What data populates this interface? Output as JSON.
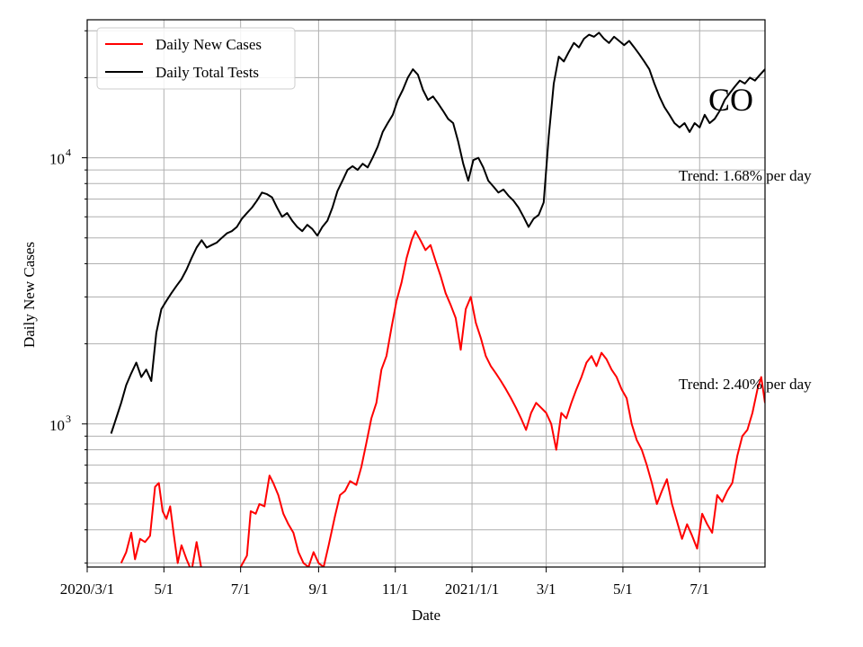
{
  "chart_data": {
    "type": "line",
    "title": "",
    "state_label": "CO",
    "xlabel": "Date",
    "ylabel": "Daily New Cases",
    "y_scale": "log",
    "ylim": [
      290,
      33000
    ],
    "xlim": [
      "2020-03-01",
      "2021-08-22"
    ],
    "grid": true,
    "legend_position": "top-left",
    "x_ticks": [
      {
        "date": "2020-03-01",
        "label": "2020/3/1"
      },
      {
        "date": "2020-05-01",
        "label": "5/1"
      },
      {
        "date": "2020-07-01",
        "label": "7/1"
      },
      {
        "date": "2020-09-01",
        "label": "9/1"
      },
      {
        "date": "2020-11-01",
        "label": "11/1"
      },
      {
        "date": "2021-01-01",
        "label": "2021/1/1"
      },
      {
        "date": "2021-03-01",
        "label": "3/1"
      },
      {
        "date": "2021-05-01",
        "label": "5/1"
      },
      {
        "date": "2021-07-01",
        "label": "7/1"
      }
    ],
    "y_major_ticks": [
      {
        "value": 1000,
        "label_base": "10",
        "label_exp": "3"
      },
      {
        "value": 10000,
        "label_base": "10",
        "label_exp": "4"
      }
    ],
    "annotations": [
      {
        "text": "Trend: 1.68% per day",
        "series": "Daily Total Tests"
      },
      {
        "text": "Trend: 2.40% per day",
        "series": "Daily New Cases"
      }
    ],
    "series": [
      {
        "name": "Daily New Cases",
        "color": "#ff0000",
        "points": [
          [
            "2020-03-28",
            300
          ],
          [
            "2020-04-01",
            330
          ],
          [
            "2020-04-05",
            390
          ],
          [
            "2020-04-08",
            310
          ],
          [
            "2020-04-12",
            370
          ],
          [
            "2020-04-16",
            360
          ],
          [
            "2020-04-20",
            380
          ],
          [
            "2020-04-24",
            580
          ],
          [
            "2020-04-27",
            600
          ],
          [
            "2020-04-30",
            470
          ],
          [
            "2020-05-03",
            440
          ],
          [
            "2020-05-06",
            490
          ],
          [
            "2020-05-09",
            380
          ],
          [
            "2020-05-12",
            300
          ],
          [
            "2020-05-15",
            350
          ],
          [
            "2020-05-19",
            310
          ],
          [
            "2020-05-23",
            280
          ],
          [
            "2020-05-27",
            360
          ],
          [
            "2020-05-30",
            300
          ],
          [
            "2020-06-02",
            250
          ],
          [
            "2020-06-27",
            250
          ],
          [
            "2020-07-01",
            290
          ],
          [
            "2020-07-06",
            320
          ],
          [
            "2020-07-09",
            470
          ],
          [
            "2020-07-13",
            460
          ],
          [
            "2020-07-16",
            500
          ],
          [
            "2020-07-20",
            490
          ],
          [
            "2020-07-24",
            640
          ],
          [
            "2020-07-27",
            600
          ],
          [
            "2020-07-31",
            540
          ],
          [
            "2020-08-04",
            460
          ],
          [
            "2020-08-08",
            420
          ],
          [
            "2020-08-12",
            390
          ],
          [
            "2020-08-16",
            330
          ],
          [
            "2020-08-20",
            300
          ],
          [
            "2020-08-24",
            290
          ],
          [
            "2020-08-28",
            330
          ],
          [
            "2020-09-01",
            300
          ],
          [
            "2020-09-05",
            290
          ],
          [
            "2020-09-09",
            350
          ],
          [
            "2020-09-14",
            450
          ],
          [
            "2020-09-18",
            540
          ],
          [
            "2020-09-22",
            560
          ],
          [
            "2020-09-26",
            610
          ],
          [
            "2020-10-01",
            590
          ],
          [
            "2020-10-05",
            690
          ],
          [
            "2020-10-09",
            850
          ],
          [
            "2020-10-13",
            1050
          ],
          [
            "2020-10-17",
            1200
          ],
          [
            "2020-10-21",
            1600
          ],
          [
            "2020-10-25",
            1800
          ],
          [
            "2020-10-29",
            2300
          ],
          [
            "2020-11-02",
            2900
          ],
          [
            "2020-11-06",
            3400
          ],
          [
            "2020-11-10",
            4200
          ],
          [
            "2020-11-14",
            4900
          ],
          [
            "2020-11-17",
            5300
          ],
          [
            "2020-11-21",
            4900
          ],
          [
            "2020-11-25",
            4500
          ],
          [
            "2020-11-29",
            4700
          ],
          [
            "2020-12-03",
            4100
          ],
          [
            "2020-12-07",
            3600
          ],
          [
            "2020-12-11",
            3100
          ],
          [
            "2020-12-15",
            2800
          ],
          [
            "2020-12-19",
            2500
          ],
          [
            "2020-12-23",
            1900
          ],
          [
            "2020-12-27",
            2700
          ],
          [
            "2020-12-31",
            3000
          ],
          [
            "2021-01-04",
            2400
          ],
          [
            "2021-01-08",
            2100
          ],
          [
            "2021-01-12",
            1800
          ],
          [
            "2021-01-16",
            1650
          ],
          [
            "2021-01-20",
            1550
          ],
          [
            "2021-01-24",
            1450
          ],
          [
            "2021-01-28",
            1350
          ],
          [
            "2021-02-01",
            1250
          ],
          [
            "2021-02-05",
            1150
          ],
          [
            "2021-02-09",
            1050
          ],
          [
            "2021-02-13",
            950
          ],
          [
            "2021-02-17",
            1100
          ],
          [
            "2021-02-21",
            1200
          ],
          [
            "2021-02-25",
            1150
          ],
          [
            "2021-03-01",
            1100
          ],
          [
            "2021-03-05",
            1000
          ],
          [
            "2021-03-09",
            800
          ],
          [
            "2021-03-13",
            1100
          ],
          [
            "2021-03-17",
            1050
          ],
          [
            "2021-03-21",
            1200
          ],
          [
            "2021-03-25",
            1350
          ],
          [
            "2021-03-29",
            1500
          ],
          [
            "2021-04-02",
            1700
          ],
          [
            "2021-04-06",
            1800
          ],
          [
            "2021-04-10",
            1650
          ],
          [
            "2021-04-14",
            1850
          ],
          [
            "2021-04-18",
            1750
          ],
          [
            "2021-04-22",
            1600
          ],
          [
            "2021-04-26",
            1500
          ],
          [
            "2021-04-30",
            1350
          ],
          [
            "2021-05-04",
            1250
          ],
          [
            "2021-05-08",
            1000
          ],
          [
            "2021-05-12",
            870
          ],
          [
            "2021-05-16",
            800
          ],
          [
            "2021-05-20",
            700
          ],
          [
            "2021-05-24",
            600
          ],
          [
            "2021-05-28",
            500
          ],
          [
            "2021-06-01",
            560
          ],
          [
            "2021-06-05",
            620
          ],
          [
            "2021-06-09",
            500
          ],
          [
            "2021-06-13",
            430
          ],
          [
            "2021-06-17",
            370
          ],
          [
            "2021-06-21",
            420
          ],
          [
            "2021-06-25",
            380
          ],
          [
            "2021-06-29",
            340
          ],
          [
            "2021-07-03",
            460
          ],
          [
            "2021-07-07",
            420
          ],
          [
            "2021-07-11",
            390
          ],
          [
            "2021-07-15",
            540
          ],
          [
            "2021-07-19",
            510
          ],
          [
            "2021-07-23",
            560
          ],
          [
            "2021-07-27",
            600
          ],
          [
            "2021-07-31",
            760
          ],
          [
            "2021-08-04",
            900
          ],
          [
            "2021-08-08",
            950
          ],
          [
            "2021-08-12",
            1100
          ],
          [
            "2021-08-16",
            1350
          ],
          [
            "2021-08-19",
            1500
          ],
          [
            "2021-08-22",
            1200
          ]
        ]
      },
      {
        "name": "Daily Total Tests",
        "color": "#000000",
        "points": [
          [
            "2020-03-20",
            920
          ],
          [
            "2020-03-24",
            1050
          ],
          [
            "2020-03-28",
            1200
          ],
          [
            "2020-04-01",
            1400
          ],
          [
            "2020-04-05",
            1550
          ],
          [
            "2020-04-09",
            1700
          ],
          [
            "2020-04-13",
            1500
          ],
          [
            "2020-04-17",
            1600
          ],
          [
            "2020-04-21",
            1450
          ],
          [
            "2020-04-25",
            2200
          ],
          [
            "2020-04-29",
            2700
          ],
          [
            "2020-05-03",
            2900
          ],
          [
            "2020-05-07",
            3100
          ],
          [
            "2020-05-11",
            3300
          ],
          [
            "2020-05-15",
            3500
          ],
          [
            "2020-05-19",
            3800
          ],
          [
            "2020-05-23",
            4200
          ],
          [
            "2020-05-27",
            4600
          ],
          [
            "2020-05-31",
            4900
          ],
          [
            "2020-06-04",
            4600
          ],
          [
            "2020-06-08",
            4700
          ],
          [
            "2020-06-12",
            4800
          ],
          [
            "2020-06-16",
            5000
          ],
          [
            "2020-06-20",
            5200
          ],
          [
            "2020-06-24",
            5300
          ],
          [
            "2020-06-28",
            5500
          ],
          [
            "2020-07-02",
            5900
          ],
          [
            "2020-07-06",
            6200
          ],
          [
            "2020-07-10",
            6500
          ],
          [
            "2020-07-14",
            6900
          ],
          [
            "2020-07-18",
            7400
          ],
          [
            "2020-07-22",
            7300
          ],
          [
            "2020-07-26",
            7100
          ],
          [
            "2020-07-30",
            6500
          ],
          [
            "2020-08-03",
            6000
          ],
          [
            "2020-08-07",
            6200
          ],
          [
            "2020-08-11",
            5800
          ],
          [
            "2020-08-15",
            5500
          ],
          [
            "2020-08-19",
            5300
          ],
          [
            "2020-08-23",
            5600
          ],
          [
            "2020-08-27",
            5400
          ],
          [
            "2020-08-31",
            5100
          ],
          [
            "2020-09-04",
            5500
          ],
          [
            "2020-09-08",
            5800
          ],
          [
            "2020-09-12",
            6500
          ],
          [
            "2020-09-16",
            7500
          ],
          [
            "2020-09-20",
            8200
          ],
          [
            "2020-09-24",
            9000
          ],
          [
            "2020-09-28",
            9300
          ],
          [
            "2020-10-02",
            9000
          ],
          [
            "2020-10-06",
            9500
          ],
          [
            "2020-10-10",
            9200
          ],
          [
            "2020-10-14",
            10000
          ],
          [
            "2020-10-18",
            11000
          ],
          [
            "2020-10-22",
            12500
          ],
          [
            "2020-10-26",
            13500
          ],
          [
            "2020-10-30",
            14500
          ],
          [
            "2020-11-03",
            16500
          ],
          [
            "2020-11-07",
            18000
          ],
          [
            "2020-11-11",
            20000
          ],
          [
            "2020-11-15",
            21500
          ],
          [
            "2020-11-19",
            20500
          ],
          [
            "2020-11-23",
            18000
          ],
          [
            "2020-11-27",
            16500
          ],
          [
            "2020-12-01",
            17000
          ],
          [
            "2020-12-05",
            16000
          ],
          [
            "2020-12-09",
            15000
          ],
          [
            "2020-12-13",
            14000
          ],
          [
            "2020-12-17",
            13500
          ],
          [
            "2020-12-21",
            11500
          ],
          [
            "2020-12-25",
            9500
          ],
          [
            "2020-12-29",
            8200
          ],
          [
            "2021-01-02",
            9800
          ],
          [
            "2021-01-06",
            10000
          ],
          [
            "2021-01-10",
            9200
          ],
          [
            "2021-01-14",
            8200
          ],
          [
            "2021-01-18",
            7800
          ],
          [
            "2021-01-22",
            7400
          ],
          [
            "2021-01-26",
            7600
          ],
          [
            "2021-01-30",
            7200
          ],
          [
            "2021-02-03",
            6900
          ],
          [
            "2021-02-07",
            6500
          ],
          [
            "2021-02-11",
            6000
          ],
          [
            "2021-02-15",
            5500
          ],
          [
            "2021-02-19",
            5900
          ],
          [
            "2021-02-23",
            6100
          ],
          [
            "2021-02-27",
            6800
          ],
          [
            "2021-03-03",
            12000
          ],
          [
            "2021-03-07",
            19000
          ],
          [
            "2021-03-11",
            24000
          ],
          [
            "2021-03-15",
            23000
          ],
          [
            "2021-03-19",
            25000
          ],
          [
            "2021-03-23",
            27000
          ],
          [
            "2021-03-27",
            26000
          ],
          [
            "2021-03-31",
            28000
          ],
          [
            "2021-04-04",
            29000
          ],
          [
            "2021-04-08",
            28500
          ],
          [
            "2021-04-12",
            29500
          ],
          [
            "2021-04-16",
            28000
          ],
          [
            "2021-04-20",
            27000
          ],
          [
            "2021-04-24",
            28500
          ],
          [
            "2021-04-28",
            27500
          ],
          [
            "2021-05-02",
            26500
          ],
          [
            "2021-05-06",
            27500
          ],
          [
            "2021-05-10",
            26000
          ],
          [
            "2021-05-14",
            24500
          ],
          [
            "2021-05-18",
            23000
          ],
          [
            "2021-05-22",
            21500
          ],
          [
            "2021-05-26",
            19000
          ],
          [
            "2021-05-30",
            17000
          ],
          [
            "2021-06-03",
            15500
          ],
          [
            "2021-06-07",
            14500
          ],
          [
            "2021-06-11",
            13500
          ],
          [
            "2021-06-15",
            13000
          ],
          [
            "2021-06-19",
            13500
          ],
          [
            "2021-06-23",
            12500
          ],
          [
            "2021-06-27",
            13500
          ],
          [
            "2021-07-01",
            13000
          ],
          [
            "2021-07-05",
            14500
          ],
          [
            "2021-07-09",
            13500
          ],
          [
            "2021-07-13",
            14000
          ],
          [
            "2021-07-17",
            15000
          ],
          [
            "2021-07-21",
            16500
          ],
          [
            "2021-07-25",
            17500
          ],
          [
            "2021-07-29",
            18500
          ],
          [
            "2021-08-02",
            19500
          ],
          [
            "2021-08-06",
            19000
          ],
          [
            "2021-08-10",
            20000
          ],
          [
            "2021-08-14",
            19500
          ],
          [
            "2021-08-18",
            20500
          ],
          [
            "2021-08-22",
            21500
          ]
        ]
      }
    ]
  }
}
